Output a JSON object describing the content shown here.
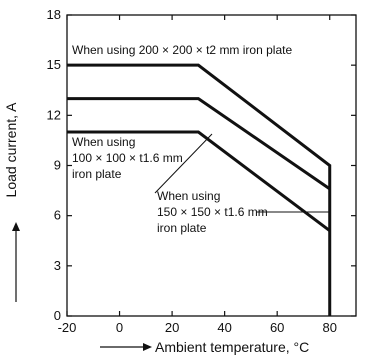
{
  "chart_data": {
    "type": "line",
    "xlabel": "Ambient temperature, °C",
    "ylabel": "Load current, A",
    "xlim": [
      -20,
      90
    ],
    "ylim": [
      0,
      18
    ],
    "x_ticks": [
      -20,
      0,
      20,
      40,
      60,
      80
    ],
    "y_ticks": [
      0,
      3,
      6,
      9,
      12,
      15,
      18
    ],
    "grid": false,
    "series": [
      {
        "x": [
          -20,
          30,
          80,
          80
        ],
        "values": [
          15,
          15,
          9,
          0
        ]
      },
      {
        "x": [
          -20,
          30,
          80
        ],
        "values": [
          13,
          13,
          7.6
        ]
      },
      {
        "x": [
          -20,
          30,
          80
        ],
        "values": [
          11,
          11,
          5.1
        ]
      }
    ],
    "annotations": {
      "top": "When using 200 × 200 × t2 mm iron plate",
      "left": [
        "When using",
        "100 × 100 × t1.6 mm",
        "iron plate"
      ],
      "right": [
        "When using",
        "150 × 150 × t1.6 mm",
        "iron plate"
      ]
    }
  }
}
